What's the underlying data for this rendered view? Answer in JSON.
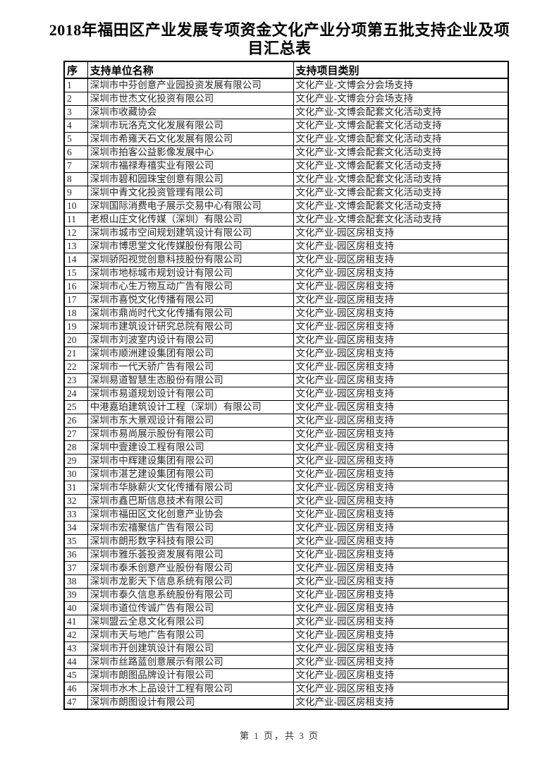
{
  "title": "2018年福田区产业发展专项资金文化产业分项第五批支持企业及项目汇总表",
  "table": {
    "headers": {
      "no": "序",
      "name": "支持单位名称",
      "category": "支持项目类别"
    },
    "rows": [
      {
        "no": "1",
        "name": "深圳市中芬创意产业园投资发展有限公司",
        "category": "文化产业-文博会分会场支持"
      },
      {
        "no": "2",
        "name": "深圳市世杰文化投资有限公司",
        "category": "文化产业-文博会分会场支持"
      },
      {
        "no": "3",
        "name": "深圳市收藏协会",
        "category": "文化产业-文博会配套文化活动支持"
      },
      {
        "no": "4",
        "name": "深圳市玩洛克文化发展有限公司",
        "category": "文化产业-文博会配套文化活动支持"
      },
      {
        "no": "5",
        "name": "深圳市希雍天石文化发展有限公司",
        "category": "文化产业-文博会配套文化活动支持"
      },
      {
        "no": "6",
        "name": "深圳市拍客公益影像发展中心",
        "category": "文化产业-文博会配套文化活动支持"
      },
      {
        "no": "7",
        "name": "深圳市福禄寿禧实业有限公司",
        "category": "文化产业-文博会配套文化活动支持"
      },
      {
        "no": "8",
        "name": "深圳市碧和园珠宝创意有限公司",
        "category": "文化产业-文博会配套文化活动支持"
      },
      {
        "no": "9",
        "name": "深圳中青文化投资管理有限公司",
        "category": "文化产业-文博会配套文化活动支持"
      },
      {
        "no": "10",
        "name": "深圳国际消费电子展示交易中心有限公司",
        "category": "文化产业-文博会配套文化活动支持"
      },
      {
        "no": "11",
        "name": "老根山庄文化传媒（深圳）有限公司",
        "category": "文化产业-文博会配套文化活动支持"
      },
      {
        "no": "12",
        "name": "深圳市城市空间规划建筑设计有限公司",
        "category": "文化产业-园区房租支持"
      },
      {
        "no": "13",
        "name": "深圳市博思堂文化传媒股份有限公司",
        "category": "文化产业-园区房租支持"
      },
      {
        "no": "14",
        "name": "深圳骄阳视觉创意科技股份有限公司",
        "category": "文化产业-园区房租支持"
      },
      {
        "no": "15",
        "name": "深圳市地标城市规划设计有限公司",
        "category": "文化产业-园区房租支持"
      },
      {
        "no": "16",
        "name": "深圳市心生万物互动广告有限公司",
        "category": "文化产业-园区房租支持"
      },
      {
        "no": "17",
        "name": "深圳市喜悦文化传播有限公司",
        "category": "文化产业-园区房租支持"
      },
      {
        "no": "18",
        "name": "深圳市鼎尚时代文化传播有限公司",
        "category": "文化产业-园区房租支持"
      },
      {
        "no": "19",
        "name": "深圳市建筑设计研究总院有限公司",
        "category": "文化产业-园区房租支持"
      },
      {
        "no": "20",
        "name": "深圳市刘波室内设计有限公司",
        "category": "文化产业-园区房租支持"
      },
      {
        "no": "21",
        "name": "深圳市顺洲建设集团有限公司",
        "category": "文化产业-园区房租支持"
      },
      {
        "no": "22",
        "name": "深圳市一代天骄广告有限公司",
        "category": "文化产业-园区房租支持"
      },
      {
        "no": "23",
        "name": "深圳易道智慧生态股份有限公司",
        "category": "文化产业-园区房租支持"
      },
      {
        "no": "24",
        "name": "深圳市易道规划设计有限公司",
        "category": "文化产业-园区房租支持"
      },
      {
        "no": "25",
        "name": "中港嘉珀建筑设计工程（深圳）有限公司",
        "category": "文化产业-园区房租支持"
      },
      {
        "no": "26",
        "name": "深圳市东大景观设计有限公司",
        "category": "文化产业-园区房租支持"
      },
      {
        "no": "27",
        "name": "深圳市易尚展示股份有限公司",
        "category": "文化产业-园区房租支持"
      },
      {
        "no": "28",
        "name": "深圳中壹建设工程有限公司",
        "category": "文化产业-园区房租支持"
      },
      {
        "no": "29",
        "name": "深圳市中辉建设集团有限公司",
        "category": "文化产业-园区房租支持"
      },
      {
        "no": "30",
        "name": "深圳市湛艺建设集团有限公司",
        "category": "文化产业-园区房租支持"
      },
      {
        "no": "31",
        "name": "深圳市华脉薪火文化传播有限公司",
        "category": "文化产业-园区房租支持"
      },
      {
        "no": "32",
        "name": "深圳市鑫巴斯信息技术有限公司",
        "category": "文化产业-园区房租支持"
      },
      {
        "no": "33",
        "name": "深圳市福田区文化创意产业协会",
        "category": "文化产业-园区房租支持"
      },
      {
        "no": "34",
        "name": "深圳市宏禧聚信广告有限公司",
        "category": "文化产业-园区房租支持"
      },
      {
        "no": "35",
        "name": "深圳市朗形数字科技有限公司",
        "category": "文化产业-园区房租支持"
      },
      {
        "no": "36",
        "name": "深圳市雅乐荟投资发展有限公司",
        "category": "文化产业-园区房租支持"
      },
      {
        "no": "37",
        "name": "深圳市泰禾创意产业股份有限公司",
        "category": "文化产业-园区房租支持"
      },
      {
        "no": "38",
        "name": "深圳市龙影天下信息系统有限公司",
        "category": "文化产业-园区房租支持"
      },
      {
        "no": "39",
        "name": "深圳市泰久信息系统股份有限公司",
        "category": "文化产业-园区房租支持"
      },
      {
        "no": "40",
        "name": "深圳市道位传诚广告有限公司",
        "category": "文化产业-园区房租支持"
      },
      {
        "no": "41",
        "name": "深圳盟云全息文化有限公司",
        "category": "文化产业-园区房租支持"
      },
      {
        "no": "42",
        "name": "深圳市天与地广告有限公司",
        "category": "文化产业-园区房租支持"
      },
      {
        "no": "43",
        "name": "深圳市开创建筑设计有限公司",
        "category": "文化产业-园区房租支持"
      },
      {
        "no": "44",
        "name": "深圳市丝路蓝创意展示有限公司",
        "category": "文化产业-园区房租支持"
      },
      {
        "no": "45",
        "name": "深圳市朗图品牌设计有限公司",
        "category": "文化产业-园区房租支持"
      },
      {
        "no": "46",
        "name": "深圳市水木上品设计工程有限公司",
        "category": "文化产业-园区房租支持"
      },
      {
        "no": "47",
        "name": "深圳市朗图设计有限公司",
        "category": "文化产业-园区房租支持"
      }
    ]
  },
  "footer": {
    "page_info": "第 1 页，共 3 页"
  },
  "colors": {
    "background": "#ffffff",
    "text": "#262626",
    "border": "#000000"
  }
}
